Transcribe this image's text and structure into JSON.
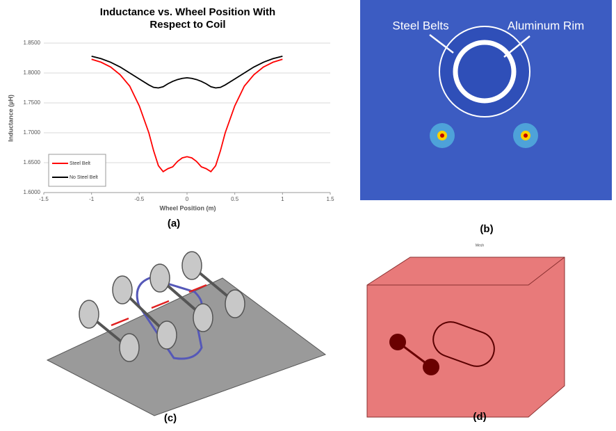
{
  "chart_data": {
    "type": "line",
    "title": "Inductance vs. Wheel Position With Respect to Coil",
    "x_label": "Wheel Position (m)",
    "y_label": "Inductance (µH)",
    "x": [
      -1,
      -0.9,
      -0.8,
      -0.7,
      -0.6,
      -0.5,
      -0.4,
      -0.35,
      -0.3,
      -0.25,
      -0.2,
      -0.15,
      -0.1,
      -0.05,
      0,
      0.05,
      0.1,
      0.15,
      0.2,
      0.25,
      0.3,
      0.35,
      0.4,
      0.5,
      0.6,
      0.7,
      0.8,
      0.9,
      1
    ],
    "series": [
      {
        "name": "Steel Belt",
        "color": "#ff0000",
        "values": [
          1.823,
          1.818,
          1.81,
          1.797,
          1.778,
          1.745,
          1.7,
          1.67,
          1.645,
          1.635,
          1.64,
          1.643,
          1.652,
          1.658,
          1.66,
          1.658,
          1.652,
          1.643,
          1.64,
          1.635,
          1.645,
          1.67,
          1.7,
          1.745,
          1.778,
          1.797,
          1.81,
          1.818,
          1.823
        ]
      },
      {
        "name": "No Steel Belt",
        "color": "#000000",
        "values": [
          1.828,
          1.824,
          1.818,
          1.81,
          1.8,
          1.79,
          1.78,
          1.776,
          1.775,
          1.777,
          1.782,
          1.786,
          1.789,
          1.791,
          1.792,
          1.791,
          1.789,
          1.786,
          1.782,
          1.777,
          1.775,
          1.776,
          1.78,
          1.79,
          1.8,
          1.81,
          1.818,
          1.824,
          1.828
        ]
      }
    ],
    "xlim": [
      -1.5,
      1.5
    ],
    "xticks": [
      -1.5,
      -1,
      -0.5,
      0,
      0.5,
      1,
      1.5
    ],
    "ylim": [
      1.6,
      1.85
    ],
    "yticks": [
      {
        "value": 1.6,
        "label": "1.6000"
      },
      {
        "value": 1.65,
        "label": "1.6500"
      },
      {
        "value": 1.7,
        "label": "1.7000"
      },
      {
        "value": 1.75,
        "label": "1.7500"
      },
      {
        "value": 1.8,
        "label": "1.8000"
      },
      {
        "value": 1.85,
        "label": "1.8500"
      }
    ],
    "grid": true,
    "legend": "lower left"
  },
  "panels": {
    "a": "(a)",
    "b": "(b)",
    "c": "(c)",
    "d": "(d)"
  },
  "annotations": {
    "steel_belts": "Steel Belts",
    "aluminum_rim": "Aluminum Rim",
    "mesh": "Mesh"
  }
}
